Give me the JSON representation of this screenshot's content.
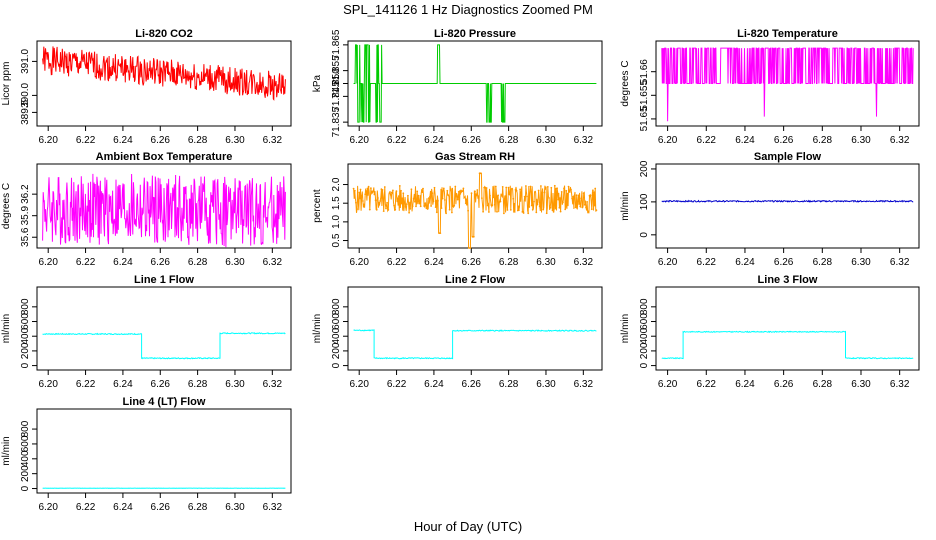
{
  "figure": {
    "title": "SPL_141126  1 Hz Diagnostics Zoomed PM",
    "xlabel": "Hour of Day (UTC)"
  },
  "chart_data": [
    {
      "type": "line",
      "title": "Li-820 CO2",
      "ylabel": "Licor ppm",
      "color": "#ff0000",
      "xlim": [
        6.194,
        6.33
      ],
      "ylim": [
        389.1,
        391.6
      ],
      "yticks": [
        {
          "v": 389.5,
          "label": "389.5"
        },
        {
          "v": 390.0,
          "label": "390.0"
        },
        {
          "v": 391.0,
          "label": "391.0"
        }
      ],
      "xticks": [
        "6.20",
        "6.22",
        "6.24",
        "6.26",
        "6.28",
        "6.30",
        "6.32"
      ],
      "series": [
        {
          "name": "CO2",
          "kind": "noise",
          "start": 6.197,
          "end": 6.327,
          "from": 391.05,
          "to": 390.25,
          "spread": 0.85,
          "seed": 1
        }
      ]
    },
    {
      "type": "line",
      "title": "Li-820 Pressure",
      "ylabel": "kPa",
      "color": "#00cc00",
      "xlim": [
        6.194,
        6.33
      ],
      "ylim": [
        71.8335,
        71.8665
      ],
      "yticks": [
        {
          "v": 71.835,
          "label": "71.835"
        },
        {
          "v": 71.845,
          "label": "71.845"
        },
        {
          "v": 71.85,
          "label": "71.850"
        },
        {
          "v": 71.855,
          "label": "71.855"
        },
        {
          "v": 71.865,
          "label": "71.865"
        }
      ],
      "xticks": [
        "6.20",
        "6.22",
        "6.24",
        "6.26",
        "6.28",
        "6.30",
        "6.32"
      ],
      "series": [
        {
          "name": "Pressure",
          "kind": "levels",
          "start": 6.197,
          "end": 6.327,
          "base": 71.85,
          "up": 71.865,
          "down": 71.835,
          "bursts": [
            [
              6.198,
              6.206,
              "both"
            ],
            [
              6.209,
              6.212,
              "both"
            ],
            [
              6.242,
              6.243,
              "up"
            ],
            [
              6.268,
              6.271,
              "down"
            ],
            [
              6.276,
              6.278,
              "down"
            ]
          ],
          "seed": 2
        }
      ]
    },
    {
      "type": "line",
      "title": "Li-820 Temperature",
      "ylabel": "degrees C",
      "color": "#ff00ff",
      "xlim": [
        6.194,
        6.33
      ],
      "ylim": [
        51.6485,
        51.6665
      ],
      "yticks": [
        {
          "v": 51.65,
          "label": "51.65"
        },
        {
          "v": 51.655,
          "label": "51.655"
        },
        {
          "v": 51.66,
          "label": "51.66"
        }
      ],
      "xticks": [
        "6.20",
        "6.22",
        "6.24",
        "6.26",
        "6.28",
        "6.30",
        "6.32"
      ],
      "series": [
        {
          "name": "Temperature",
          "kind": "toggle",
          "start": 6.197,
          "end": 6.327,
          "low": 51.6575,
          "high": 51.665,
          "dips": [
            [
              6.2,
              51.6495
            ],
            [
              6.25,
              51.6505
            ],
            [
              6.308,
              51.6505
            ]
          ],
          "seed": 3
        }
      ]
    },
    {
      "type": "line",
      "title": "Ambient Box Temperature",
      "ylabel": "degrees C",
      "color": "#ff00ff",
      "xlim": [
        6.194,
        6.33
      ],
      "ylim": [
        35.45,
        36.62
      ],
      "yticks": [
        {
          "v": 35.6,
          "label": "35.6"
        },
        {
          "v": 35.9,
          "label": "35.9"
        },
        {
          "v": 36.2,
          "label": "36.2"
        }
      ],
      "xticks": [
        "6.20",
        "6.22",
        "6.24",
        "6.26",
        "6.28",
        "6.30",
        "6.32"
      ],
      "series": [
        {
          "name": "Ambient",
          "kind": "noise",
          "start": 6.197,
          "end": 6.327,
          "from": 36.0,
          "to": 35.95,
          "spread": 1.0,
          "seed": 4
        }
      ]
    },
    {
      "type": "line",
      "title": "Gas Stream RH",
      "ylabel": "percent",
      "color": "#ff9900",
      "xlim": [
        6.194,
        6.33
      ],
      "ylim": [
        0.3,
        2.55
      ],
      "yticks": [
        {
          "v": 0.5,
          "label": "0.5"
        },
        {
          "v": 1.0,
          "label": "1.0"
        },
        {
          "v": 1.5,
          "label": "1.5"
        },
        {
          "v": 2.0,
          "label": "2.0"
        }
      ],
      "xticks": [
        "6.20",
        "6.22",
        "6.24",
        "6.26",
        "6.28",
        "6.30",
        "6.32"
      ],
      "series": [
        {
          "name": "RH",
          "kind": "noise",
          "start": 6.197,
          "end": 6.327,
          "from": 1.6,
          "to": 1.6,
          "spread": 0.75,
          "spikes": [
            [
              6.243,
              0.7
            ],
            [
              6.259,
              0.3
            ],
            [
              6.261,
              0.6
            ],
            [
              6.265,
              2.3
            ]
          ],
          "seed": 5,
          "markers": true
        }
      ]
    },
    {
      "type": "line",
      "title": "Sample Flow",
      "ylabel": "ml/min",
      "color": "#0000cc",
      "xlim": [
        6.194,
        6.33
      ],
      "ylim": [
        -40,
        215
      ],
      "yticks": [
        {
          "v": 0,
          "label": "0"
        },
        {
          "v": 100,
          "label": "100"
        },
        {
          "v": 200,
          "label": "200"
        }
      ],
      "xticks": [
        "6.20",
        "6.22",
        "6.24",
        "6.26",
        "6.28",
        "6.30",
        "6.32"
      ],
      "series": [
        {
          "name": "Sample",
          "kind": "steps",
          "segments": [
            [
              6.197,
              6.327,
              102
            ]
          ],
          "jitter": 4,
          "seed": 6
        }
      ]
    },
    {
      "type": "line",
      "title": "Line 1 Flow",
      "ylabel": "ml/min",
      "color": "#00ffff",
      "xlim": [
        6.194,
        6.33
      ],
      "ylim": [
        -60,
        1070
      ],
      "yticks": [
        {
          "v": 0,
          "label": "0"
        },
        {
          "v": 200,
          "label": "200"
        },
        {
          "v": 400,
          "label": "400"
        },
        {
          "v": 600,
          "label": "600"
        },
        {
          "v": 800,
          "label": "800"
        }
      ],
      "xticks": [
        "6.20",
        "6.22",
        "6.24",
        "6.26",
        "6.28",
        "6.30",
        "6.32"
      ],
      "series": [
        {
          "name": "Line 1",
          "kind": "steps",
          "segments": [
            [
              6.197,
              6.25,
              430
            ],
            [
              6.25,
              6.292,
              100
            ],
            [
              6.292,
              6.327,
              440
            ]
          ],
          "jitter": 14,
          "seed": 7
        }
      ]
    },
    {
      "type": "line",
      "title": "Line 2 Flow",
      "ylabel": "ml/min",
      "color": "#00ffff",
      "xlim": [
        6.194,
        6.33
      ],
      "ylim": [
        -60,
        1070
      ],
      "yticks": [
        {
          "v": 0,
          "label": "0"
        },
        {
          "v": 200,
          "label": "200"
        },
        {
          "v": 400,
          "label": "400"
        },
        {
          "v": 600,
          "label": "600"
        },
        {
          "v": 800,
          "label": "800"
        }
      ],
      "xticks": [
        "6.20",
        "6.22",
        "6.24",
        "6.26",
        "6.28",
        "6.30",
        "6.32"
      ],
      "series": [
        {
          "name": "Line 2",
          "kind": "steps",
          "segments": [
            [
              6.197,
              6.208,
              480
            ],
            [
              6.208,
              6.25,
              100
            ],
            [
              6.25,
              6.327,
              475
            ]
          ],
          "jitter": 14,
          "seed": 8
        }
      ]
    },
    {
      "type": "line",
      "title": "Line 3 Flow",
      "ylabel": "ml/min",
      "color": "#00ffff",
      "xlim": [
        6.194,
        6.33
      ],
      "ylim": [
        -60,
        1070
      ],
      "yticks": [
        {
          "v": 0,
          "label": "0"
        },
        {
          "v": 200,
          "label": "200"
        },
        {
          "v": 400,
          "label": "400"
        },
        {
          "v": 600,
          "label": "600"
        },
        {
          "v": 800,
          "label": "800"
        }
      ],
      "xticks": [
        "6.20",
        "6.22",
        "6.24",
        "6.26",
        "6.28",
        "6.30",
        "6.32"
      ],
      "series": [
        {
          "name": "Line 3",
          "kind": "steps",
          "segments": [
            [
              6.197,
              6.208,
              100
            ],
            [
              6.208,
              6.292,
              460
            ],
            [
              6.292,
              6.327,
              100
            ]
          ],
          "jitter": 12,
          "seed": 9
        }
      ]
    },
    {
      "type": "line",
      "title": "Line 4 (LT) Flow",
      "ylabel": "ml/min",
      "color": "#00ffff",
      "xlim": [
        6.194,
        6.33
      ],
      "ylim": [
        -60,
        1070
      ],
      "yticks": [
        {
          "v": 0,
          "label": "0"
        },
        {
          "v": 200,
          "label": "200"
        },
        {
          "v": 400,
          "label": "400"
        },
        {
          "v": 600,
          "label": "600"
        },
        {
          "v": 800,
          "label": "800"
        }
      ],
      "xticks": [
        "6.20",
        "6.22",
        "6.24",
        "6.26",
        "6.28",
        "6.30",
        "6.32"
      ],
      "series": [
        {
          "name": "Line 4",
          "kind": "steps",
          "segments": [
            [
              6.197,
              6.327,
              5
            ]
          ],
          "jitter": 3,
          "seed": 10
        }
      ]
    }
  ]
}
